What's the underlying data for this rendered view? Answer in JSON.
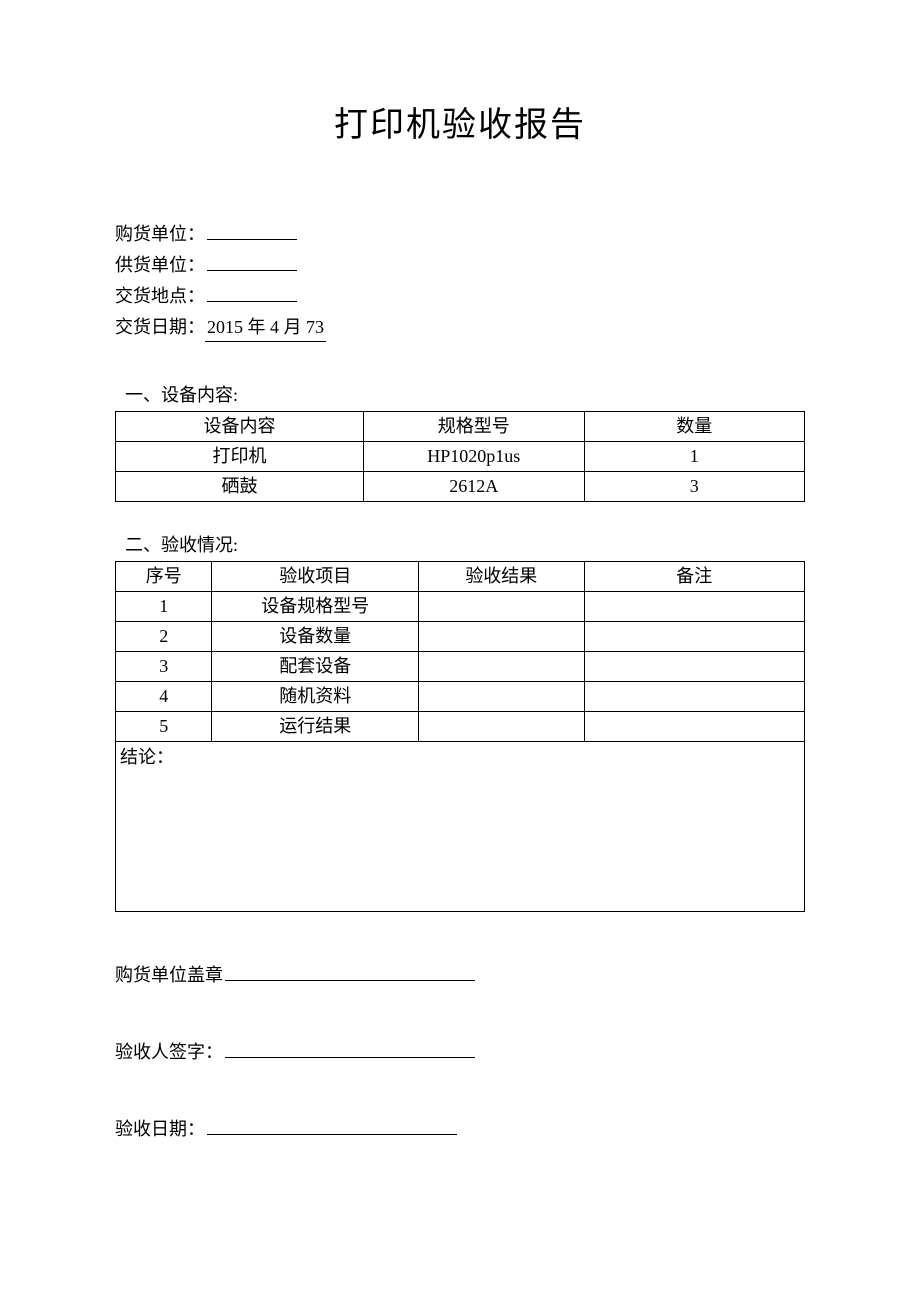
{
  "title": "打印机验收报告",
  "info": {
    "buyer_label": "购货单位：",
    "supplier_label": "供货单位：",
    "location_label": "交货地点：",
    "date_label": "交货日期：",
    "date_value": "2015 年 4 月 73"
  },
  "section1": {
    "header": "一、设备内容:",
    "columns": [
      "设备内容",
      "规格型号",
      "数量"
    ],
    "rows": [
      [
        "打印机",
        "HP1020p1us",
        "1"
      ],
      [
        "硒鼓",
        "2612A",
        "3"
      ]
    ]
  },
  "section2": {
    "header": "二、验收情况:",
    "columns": [
      "序号",
      "验收项目",
      "验收结果",
      "备注"
    ],
    "rows": [
      [
        "1",
        "设备规格型号",
        "",
        ""
      ],
      [
        "2",
        "设备数量",
        "",
        ""
      ],
      [
        "3",
        "配套设备",
        "",
        ""
      ],
      [
        "4",
        "随机资料",
        "",
        ""
      ],
      [
        "5",
        "运行结果",
        "",
        ""
      ]
    ],
    "conclusion_label": "结论："
  },
  "signatures": {
    "stamp_label": "购货单位盖章",
    "signer_label": "验收人签字：",
    "date_label": "验收日期："
  },
  "style": {
    "background_color": "#ffffff",
    "text_color": "#000000",
    "border_color": "#000000",
    "title_fontsize": 34,
    "body_fontsize": 18,
    "font_family": "SimSun"
  }
}
